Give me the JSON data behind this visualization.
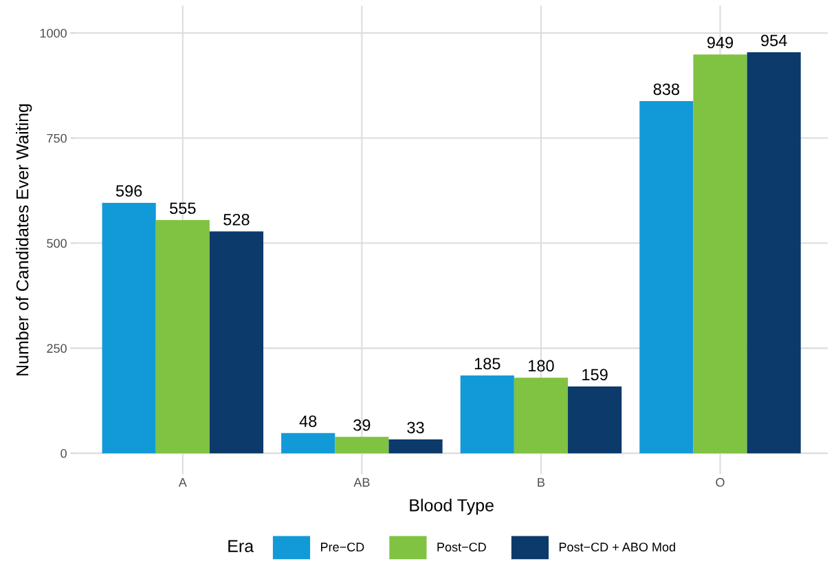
{
  "chart_data": {
    "type": "bar",
    "xlabel": "Blood Type",
    "ylabel": "Number of Candidates Ever Waiting",
    "legend_title": "Era",
    "categories": [
      "A",
      "AB",
      "B",
      "O"
    ],
    "series": [
      {
        "name": "Pre−CD",
        "color": "#129ad8",
        "values": [
          596,
          48,
          185,
          838
        ]
      },
      {
        "name": "Post−CD",
        "color": "#80c242",
        "values": [
          555,
          39,
          180,
          949
        ]
      },
      {
        "name": "Post−CD + ABO Mod",
        "color": "#0c3a6b",
        "values": [
          528,
          33,
          159,
          954
        ]
      }
    ],
    "ylim": [
      -50,
      1065
    ],
    "yticks": [
      0,
      250,
      500,
      750,
      1000
    ],
    "grid": true,
    "legend": "bottom",
    "data_labels": true
  }
}
